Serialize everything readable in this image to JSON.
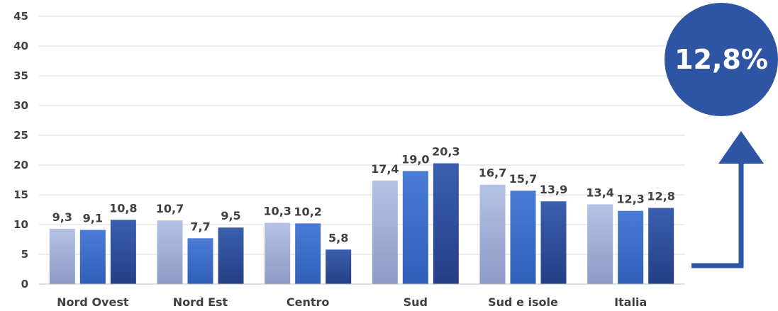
{
  "chart_data": {
    "type": "bar",
    "categories": [
      "Nord Ovest",
      "Nord Est",
      "Centro",
      "Sud",
      "Sud e isole",
      "Italia"
    ],
    "series": [
      {
        "values": [
          9.3,
          10.7,
          10.3,
          17.4,
          16.7,
          13.4
        ],
        "labels": [
          "9,3",
          "10,7",
          "10,3",
          "17,4",
          "16,7",
          "13,4"
        ],
        "color": "#aab7dd"
      },
      {
        "values": [
          9.1,
          7.7,
          10.2,
          19.0,
          15.7,
          12.3
        ],
        "labels": [
          "9,1",
          "7,7",
          "10,2",
          "19,0",
          "15,7",
          "12,3"
        ],
        "color": "#3f6ec8"
      },
      {
        "values": [
          10.8,
          9.5,
          5.8,
          20.3,
          13.9,
          12.8
        ],
        "labels": [
          "10,8",
          "9,5",
          "5,8",
          "20,3",
          "13,9",
          "12,8"
        ],
        "color": "#2d4f9b"
      }
    ],
    "ylim": [
      0,
      45
    ],
    "yticks": [
      "0",
      "5",
      "10",
      "15",
      "20",
      "25",
      "30",
      "35",
      "40",
      "45"
    ],
    "grid": true,
    "xlabel": "",
    "ylabel": ""
  },
  "callout": {
    "value": "12,8%",
    "color": "#2e55a3"
  }
}
